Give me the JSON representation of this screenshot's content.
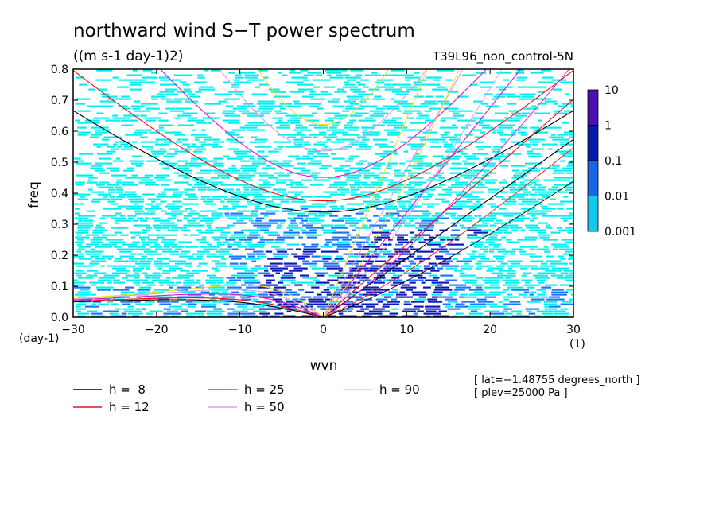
{
  "chart_data": {
    "type": "heatmap",
    "title": "northward wind S−T power spectrum",
    "units": "((m s-1 day-1)2)",
    "run_label": "T39L96_non_control-5N",
    "xlabel": "wvn",
    "ylabel": "freq",
    "x_unit": "(1)",
    "y_unit": "(day-1)",
    "xlim": [
      -30,
      30
    ],
    "ylim": [
      0,
      0.8
    ],
    "x_ticks": [
      -30,
      -20,
      -10,
      0,
      10,
      20,
      30
    ],
    "x_tick_labels": [
      "−30",
      "−20",
      "−10",
      "0",
      "10",
      "20",
      "30"
    ],
    "y_ticks": [
      0,
      0.1,
      0.2,
      0.3,
      0.4,
      0.5,
      0.6,
      0.7,
      0.8
    ],
    "y_tick_labels": [
      "0.0",
      "0.1",
      "0.2",
      "0.3",
      "0.4",
      "0.5",
      "0.6",
      "0.7",
      "0.8"
    ],
    "colorbar": {
      "levels": [
        "10",
        "1",
        "0.1",
        "0.01",
        "0.001"
      ],
      "colors": [
        "#4b10b0",
        "#0a1aa8",
        "#1a64e6",
        "#15c8ee"
      ]
    },
    "field_colors": {
      "low": "#00f0f0",
      "mid": "#1878ff",
      "high": "#0a1ab8"
    },
    "equivalent_depths": [
      {
        "label": "h =  8",
        "color": "#000000"
      },
      {
        "label": "h = 12",
        "color": "#e8141e"
      },
      {
        "label": "h = 25",
        "color": "#e018c8"
      },
      {
        "label": "h = 50",
        "color": "#d8a0e8"
      },
      {
        "label": "h = 90",
        "color": "#f0e020"
      }
    ],
    "annotations": [
      "[ lat=−1.48755 degrees_north ]",
      "[ plev=25000 Pa ]"
    ]
  }
}
